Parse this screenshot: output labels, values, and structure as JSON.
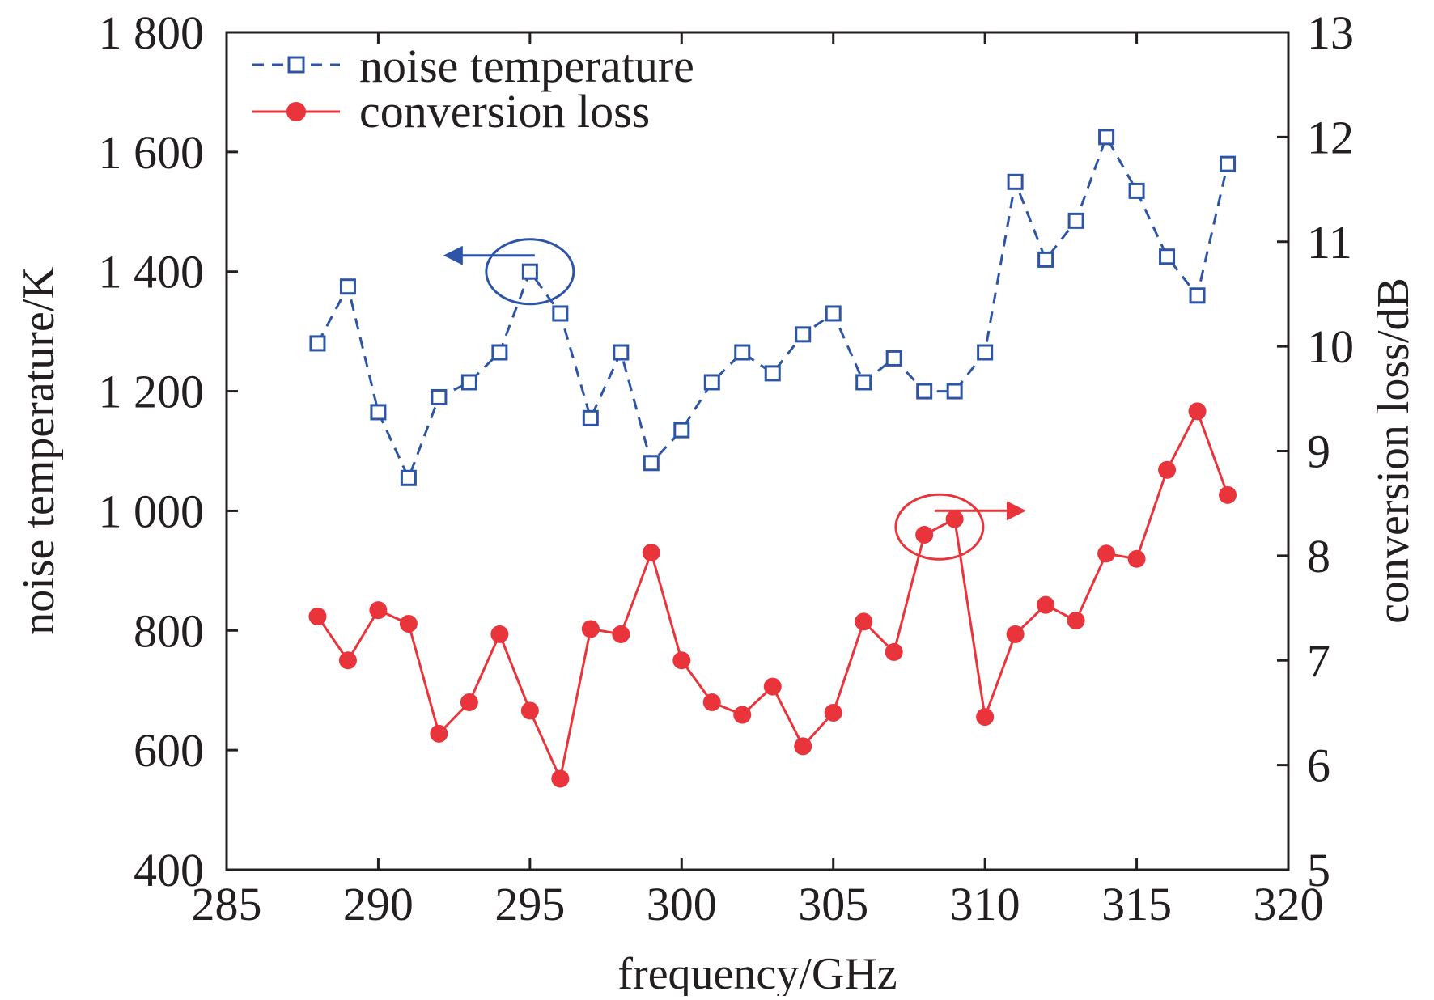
{
  "chart_data": {
    "type": "line",
    "xlabel": "frequency/GHz",
    "ylabel_left": "noise temperature/K",
    "ylabel_right": "conversion loss/dB",
    "xlim": [
      285,
      320
    ],
    "ylim_left": [
      400,
      1800
    ],
    "ylim_right": [
      5,
      13
    ],
    "x_ticks": [
      285,
      290,
      295,
      300,
      305,
      310,
      315,
      320
    ],
    "x_tick_labels": [
      "285",
      "290",
      "295",
      "300",
      "305",
      "310",
      "315",
      "320"
    ],
    "y_left_ticks": [
      400,
      600,
      800,
      1000,
      1200,
      1400,
      1600,
      1800
    ],
    "y_left_tick_labels": [
      "400",
      "600",
      "800",
      "1 000",
      "1 200",
      "1 400",
      "1 600",
      "1 800"
    ],
    "y_right_ticks": [
      5,
      6,
      7,
      8,
      9,
      10,
      11,
      12,
      13
    ],
    "y_right_tick_labels": [
      "5",
      "6",
      "7",
      "8",
      "9",
      "10",
      "11",
      "12",
      "13"
    ],
    "grid": false,
    "legend_position": "top-left",
    "x": [
      288,
      289,
      290,
      291,
      292,
      293,
      294,
      295,
      296,
      297,
      298,
      299,
      300,
      301,
      302,
      303,
      304,
      305,
      306,
      307,
      308,
      309,
      310,
      311,
      312,
      313,
      314,
      315,
      316,
      317,
      318
    ],
    "series": [
      {
        "name": "noise temperature",
        "axis": "left",
        "color": "#2e55a5",
        "line_style": "dashed",
        "marker": "open-square",
        "values": [
          1280,
          1375,
          1165,
          1055,
          1190,
          1215,
          1265,
          1400,
          1330,
          1155,
          1265,
          1080,
          1135,
          1215,
          1265,
          1230,
          1295,
          1330,
          1215,
          1255,
          1200,
          1200,
          1265,
          1550,
          1420,
          1485,
          1625,
          1535,
          1425,
          1360,
          1580
        ]
      },
      {
        "name": "conversion loss",
        "axis": "right",
        "color": "#e8343a",
        "line_style": "solid",
        "marker": "filled-circle",
        "values": [
          7.42,
          7.0,
          7.48,
          7.35,
          6.3,
          6.6,
          7.25,
          6.52,
          5.87,
          7.3,
          7.25,
          8.03,
          7.0,
          6.6,
          6.48,
          6.75,
          6.18,
          6.5,
          7.37,
          7.08,
          8.2,
          8.35,
          6.46,
          7.25,
          7.53,
          7.38,
          8.02,
          7.97,
          8.82,
          9.38,
          8.58
        ]
      }
    ],
    "annotations": [
      {
        "series": "noise temperature",
        "circled_point_x": 295,
        "arrow_direction": "left"
      },
      {
        "series": "conversion loss",
        "circled_point_x": 308.5,
        "arrow_direction": "right"
      }
    ]
  }
}
